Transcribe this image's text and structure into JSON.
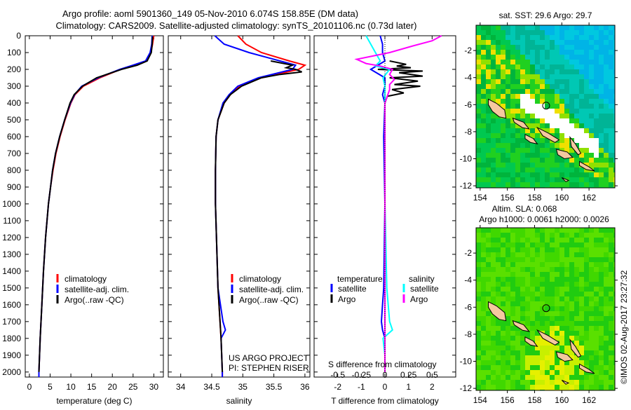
{
  "header": {
    "title_line1": "Argo profile: aoml 5901360_149 05-Nov-2010 6.074S 158.85E (DM data)",
    "title_line2": "Climatology: CARS2009. Satellite-adjusted climatology: synTS_20101106.nc (0.73d later)"
  },
  "credits": {
    "project": "US ARGO PROJECT",
    "pi": "PI: STEPHEN RISER",
    "timestamp": "©IMOS 02-Aug-2017 23:27:32"
  },
  "chart_data": [
    {
      "type": "line",
      "id": "temperature",
      "xlabel": "temperature (deg C)",
      "xlim": [
        -1,
        32.3
      ],
      "ylim": [
        0,
        2030
      ],
      "xticks": [
        0,
        5,
        10,
        15,
        20,
        25,
        30
      ],
      "xtick_labels": [
        "0",
        "5",
        "10",
        "15",
        "20",
        "25",
        "30"
      ],
      "yticks": [
        0,
        100,
        200,
        300,
        400,
        500,
        600,
        700,
        800,
        900,
        1000,
        1100,
        1200,
        1300,
        1400,
        1500,
        1600,
        1700,
        1800,
        1900,
        2000
      ],
      "ytick_labels": [
        "0",
        "100",
        "200",
        "300",
        "400",
        "500",
        "600",
        "700",
        "800",
        "900",
        "1000",
        "1100",
        "1200",
        "1300",
        "1400",
        "1500",
        "1600",
        "1700",
        "1800",
        "1900",
        "2000"
      ],
      "legend": "bottom-left",
      "series": [
        {
          "name": "climatology",
          "color": "#ff0000",
          "depth": [
            0,
            50,
            100,
            150,
            175,
            200,
            250,
            300,
            350,
            400,
            500,
            600,
            700,
            800,
            900,
            1000,
            1200,
            1400,
            1600,
            1800,
            2000,
            2030
          ],
          "values": [
            30.0,
            29.7,
            29.3,
            28.2,
            25.5,
            22.0,
            17.0,
            13.0,
            11.0,
            10.0,
            8.6,
            7.4,
            6.4,
            5.7,
            5.1,
            4.6,
            3.9,
            3.4,
            3.0,
            2.6,
            2.3,
            2.3
          ]
        },
        {
          "name": "satellite-adj. clim.",
          "color": "#0000ff",
          "depth": [
            0,
            50,
            100,
            150,
            175,
            200,
            250,
            300,
            350,
            400,
            500,
            600,
            700,
            800,
            900,
            1000,
            1200,
            1400,
            1600,
            1800,
            2000,
            2030
          ],
          "values": [
            29.6,
            29.5,
            29.1,
            28.0,
            25.0,
            21.8,
            16.6,
            12.6,
            10.9,
            9.9,
            8.5,
            7.3,
            6.3,
            5.6,
            5.1,
            4.6,
            3.9,
            3.4,
            3.0,
            2.6,
            2.3,
            2.3
          ]
        },
        {
          "name": "Argo(..raw -QC)",
          "color": "#000000",
          "depth": [
            5,
            50,
            100,
            150,
            175,
            200,
            250,
            300,
            350,
            400,
            500,
            600,
            700,
            800,
            900,
            1000,
            1200,
            1400,
            1600,
            1800,
            2000
          ],
          "values": [
            29.7,
            29.6,
            29.4,
            28.4,
            26.0,
            22.2,
            16.2,
            12.8,
            10.8,
            9.8,
            8.5,
            7.3,
            6.3,
            5.6,
            5.1,
            4.6,
            3.9,
            3.4,
            3.0,
            2.6,
            2.3
          ]
        }
      ]
    },
    {
      "type": "line",
      "id": "salinity",
      "xlabel": "salinity",
      "xlim": [
        33.8,
        36.08
      ],
      "ylim": [
        0,
        2030
      ],
      "xticks": [
        34,
        34.5,
        35,
        35.5,
        36
      ],
      "xtick_labels": [
        "34",
        "34.5",
        "35",
        "35.5",
        "36"
      ],
      "legend": "bottom-right",
      "series": [
        {
          "name": "climatology",
          "color": "#ff0000",
          "depth": [
            0,
            50,
            100,
            150,
            175,
            200,
            250,
            300,
            350,
            400,
            500,
            600,
            800,
            1000,
            1500,
            1800,
            2000,
            2030
          ],
          "values": [
            34.92,
            35.05,
            35.3,
            35.75,
            36.0,
            35.9,
            35.3,
            34.95,
            34.8,
            34.7,
            34.6,
            34.57,
            34.56,
            34.56,
            34.6,
            34.65,
            34.67,
            34.67
          ]
        },
        {
          "name": "satellite-adj. clim.",
          "color": "#0000ff",
          "depth": [
            0,
            50,
            100,
            150,
            175,
            200,
            250,
            300,
            350,
            400,
            500,
            600,
            800,
            1000,
            1500,
            1700,
            1750,
            1800,
            2000,
            2030
          ],
          "values": [
            34.55,
            34.7,
            35.1,
            35.6,
            35.85,
            35.8,
            35.25,
            34.92,
            34.78,
            34.68,
            34.6,
            34.57,
            34.56,
            34.56,
            34.6,
            34.68,
            34.72,
            34.65,
            34.67,
            34.67
          ]
        },
        {
          "name": "Argo(..raw -QC)",
          "color": "#000000",
          "depth": [
            150,
            175,
            190,
            200,
            215,
            230,
            250,
            300,
            350,
            400,
            500,
            600,
            800,
            1000,
            1500,
            1800,
            2000
          ],
          "values": [
            35.45,
            35.8,
            35.7,
            35.85,
            35.95,
            35.6,
            35.3,
            34.98,
            34.8,
            34.7,
            34.6,
            34.57,
            34.56,
            34.56,
            34.6,
            34.65,
            34.67
          ]
        }
      ]
    },
    {
      "type": "line",
      "id": "difference",
      "xlabel": "T difference from climatology",
      "xlabel2": "S difference from climatology",
      "xlim": [
        -3,
        3
      ],
      "ylim": [
        0,
        2030
      ],
      "xticks": [
        -2,
        -1,
        0,
        1,
        2
      ],
      "xtick_labels": [
        "-2",
        "-1",
        "0",
        "1",
        "2"
      ],
      "x2ticks": [
        -0.5,
        -0.25,
        0,
        0.25,
        0.5
      ],
      "x2tick_labels": [
        "-0.5",
        "-0.25",
        "0",
        "0.25",
        "0.5"
      ],
      "legend": {
        "temperature_header": "temperature",
        "salinity_header": "salinity"
      },
      "series": [
        {
          "name": "satellite",
          "group": "temperature",
          "color": "#0000ff",
          "depth": [
            0,
            50,
            100,
            150,
            200,
            250,
            300,
            350,
            400,
            600,
            1000,
            1500,
            1600,
            1700,
            1750,
            1800,
            2000
          ],
          "values": [
            -0.2,
            -0.1,
            -0.1,
            0.0,
            -0.6,
            0.0,
            0.0,
            -0.1,
            0.0,
            -0.05,
            0.0,
            -0.05,
            -0.1,
            -0.15,
            -0.1,
            0.0,
            0.0
          ]
        },
        {
          "name": "Argo",
          "group": "temperature",
          "color": "#000000",
          "depth": [
            150,
            170,
            180,
            190,
            200,
            210,
            220,
            240,
            250,
            270,
            290,
            300,
            320,
            340,
            360,
            400,
            600,
            800,
            1000,
            1500,
            2000
          ],
          "values": [
            0.2,
            0.9,
            0.5,
            1.1,
            -0.3,
            1.6,
            0.6,
            1.6,
            0.2,
            1.4,
            0.4,
            1.5,
            0.3,
            0.8,
            0.1,
            0.0,
            0.0,
            0.0,
            0.0,
            0.0,
            0.0
          ]
        },
        {
          "name": "satellite",
          "group": "salinity",
          "color": "#00ffff",
          "depth": [
            0,
            50,
            100,
            150,
            180,
            200,
            250,
            300,
            400,
            600,
            1000,
            1500,
            1700,
            1750,
            1800,
            1900,
            2000
          ],
          "values": [
            -0.2,
            -0.15,
            -0.1,
            -0.05,
            -0.1,
            0.05,
            -0.02,
            0.0,
            0.0,
            0.0,
            0.0,
            0.02,
            0.05,
            0.08,
            -0.02,
            0.0,
            0.0
          ]
        },
        {
          "name": "Argo",
          "group": "salinity",
          "color": "#ff00ff",
          "depth": [
            0,
            30,
            60,
            100,
            140,
            165,
            180,
            200,
            230,
            260,
            290,
            320,
            400,
            600,
            1000,
            1500,
            2000
          ],
          "values": [
            0.6,
            0.5,
            0.3,
            0.05,
            -0.3,
            -0.2,
            -0.05,
            0.08,
            0.05,
            0.1,
            0.05,
            0.05,
            0.0,
            0.0,
            0.0,
            0.0,
            0.0
          ]
        }
      ]
    },
    {
      "type": "heatmap",
      "id": "sst-map",
      "title": "sat. SST: 29.6 Argo: 29.7",
      "xlim": [
        153.7,
        163.9
      ],
      "ylim": [
        -12.15,
        -0.13
      ],
      "xticks": [
        154,
        156,
        158,
        160,
        162
      ],
      "xtick_labels": [
        "154",
        "156",
        "158",
        "160",
        "162"
      ],
      "yticks": [
        -2,
        -4,
        -6,
        -8,
        -10,
        -12
      ],
      "ytick_labels": [
        "-2",
        "-4",
        "-6",
        "-8",
        "-10",
        "-12"
      ],
      "float_position": {
        "lon": 158.85,
        "lat": -6.074
      }
    },
    {
      "type": "heatmap",
      "id": "sla-map",
      "title": "Altim. SLA: 0.068",
      "subtitle": "Argo h1000: 0.0061 h2000: 0.0026",
      "xlim": [
        153.7,
        163.9
      ],
      "ylim": [
        -12.15,
        -0.13
      ],
      "xticks": [
        154,
        156,
        158,
        160,
        162
      ],
      "xtick_labels": [
        "154",
        "156",
        "158",
        "160",
        "162"
      ],
      "yticks": [
        -2,
        -4,
        -6,
        -8,
        -10,
        -12
      ],
      "ytick_labels": [
        "-2",
        "-4",
        "-6",
        "-8",
        "-10",
        "-12"
      ],
      "float_position": {
        "lon": 158.85,
        "lat": -6.074
      }
    }
  ]
}
